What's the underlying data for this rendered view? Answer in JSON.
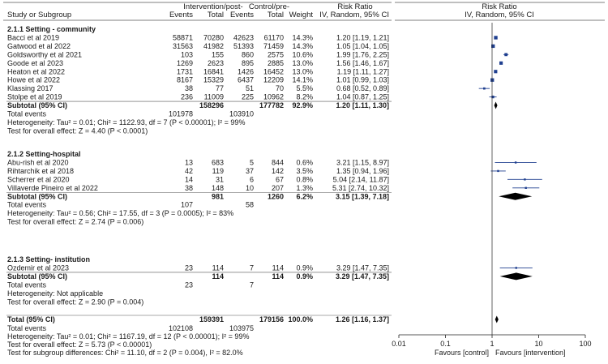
{
  "header": {
    "study_col": "Study or Subgroup",
    "group1": "Intervention/post-",
    "group2": "Control/pre-",
    "events": "Events",
    "total": "Total",
    "weight": "Weight",
    "rr_title": "Risk Ratio",
    "rr_sub": "IV, Random, 95% CI"
  },
  "subgroups": [
    {
      "title": "2.1.1 Setting - community",
      "studies": [
        {
          "name": "Bacci et al 2019",
          "e1": "58871",
          "t1": "70280",
          "e2": "42623",
          "t2": "61170",
          "weight": "14.3%",
          "ci_text": "1.20 [1.19, 1.21]",
          "rr": 1.2,
          "lo": 1.19,
          "hi": 1.21
        },
        {
          "name": "Gatwood et al 2022",
          "e1": "31563",
          "t1": "41982",
          "e2": "51393",
          "t2": "71459",
          "weight": "14.3%",
          "ci_text": "1.05 [1.04, 1.05]",
          "rr": 1.05,
          "lo": 1.04,
          "hi": 1.05
        },
        {
          "name": "Goldsworthy et al 2021",
          "e1": "103",
          "t1": "155",
          "e2": "860",
          "t2": "2575",
          "weight": "10.6%",
          "ci_text": "1.99 [1.76, 2.25]",
          "rr": 1.99,
          "lo": 1.76,
          "hi": 2.25
        },
        {
          "name": "Goode et al 2023",
          "e1": "1269",
          "t1": "2623",
          "e2": "895",
          "t2": "2885",
          "weight": "13.0%",
          "ci_text": "1.56 [1.46, 1.67]",
          "rr": 1.56,
          "lo": 1.46,
          "hi": 1.67
        },
        {
          "name": "Heaton et al 2022",
          "e1": "1731",
          "t1": "16841",
          "e2": "1426",
          "t2": "16452",
          "weight": "13.0%",
          "ci_text": "1.19 [1.11, 1.27]",
          "rr": 1.19,
          "lo": 1.11,
          "hi": 1.27
        },
        {
          "name": "Howe et al 2022",
          "e1": "8167",
          "t1": "15329",
          "e2": "6437",
          "t2": "12209",
          "weight": "14.1%",
          "ci_text": "1.01 [0.99, 1.03]",
          "rr": 1.01,
          "lo": 0.99,
          "hi": 1.03
        },
        {
          "name": "Klassing 2017",
          "e1": "38",
          "t1": "77",
          "e2": "51",
          "t2": "70",
          "weight": "5.5%",
          "ci_text": "0.68 [0.52, 0.89]",
          "rr": 0.68,
          "lo": 0.52,
          "hi": 0.89
        },
        {
          "name": "Stolpe et al 2019",
          "e1": "236",
          "t1": "11009",
          "e2": "225",
          "t2": "10962",
          "weight": "8.2%",
          "ci_text": "1.04 [0.87, 1.25]",
          "rr": 1.04,
          "lo": 0.87,
          "hi": 1.25
        }
      ],
      "subtotal": {
        "label": "Subtotal (95% CI)",
        "t1": "158296",
        "t2": "177782",
        "weight": "92.9%",
        "ci_text": "1.20 [1.11, 1.30]",
        "rr": 1.2,
        "lo": 1.11,
        "hi": 1.3
      },
      "total_events": {
        "label": "Total events",
        "e1": "101978",
        "e2": "103910"
      },
      "heterogeneity": "Heterogeneity: Tau² = 0.01; Chi² = 1122.93, df = 7 (P < 0.00001); I² = 99%",
      "overall_test": "Test for overall effect: Z = 4.40 (P < 0.0001)"
    },
    {
      "title": "2.1.2 Setting-hospital",
      "studies": [
        {
          "name": "Abu-rish et al 2020",
          "e1": "13",
          "t1": "683",
          "e2": "5",
          "t2": "844",
          "weight": "0.6%",
          "ci_text": "3.21 [1.15, 8.97]",
          "rr": 3.21,
          "lo": 1.15,
          "hi": 8.97
        },
        {
          "name": "Rihtarchik et al 2018",
          "e1": "42",
          "t1": "119",
          "e2": "37",
          "t2": "142",
          "weight": "3.5%",
          "ci_text": "1.35 [0.94, 1.96]",
          "rr": 1.35,
          "lo": 0.94,
          "hi": 1.96
        },
        {
          "name": "Scherrer et al 2020",
          "e1": "14",
          "t1": "31",
          "e2": "6",
          "t2": "67",
          "weight": "0.8%",
          "ci_text": "5.04 [2.14, 11.87]",
          "rr": 5.04,
          "lo": 2.14,
          "hi": 11.87
        },
        {
          "name": "Villaverde Pineiro et al 2022",
          "e1": "38",
          "t1": "148",
          "e2": "10",
          "t2": "207",
          "weight": "1.3%",
          "ci_text": "5.31 [2.74, 10.32]",
          "rr": 5.31,
          "lo": 2.74,
          "hi": 10.32
        }
      ],
      "subtotal": {
        "label": "Subtotal (95% CI)",
        "t1": "981",
        "t2": "1260",
        "weight": "6.2%",
        "ci_text": "3.15 [1.39, 7.18]",
        "rr": 3.15,
        "lo": 1.39,
        "hi": 7.18
      },
      "total_events": {
        "label": "Total events",
        "e1": "107",
        "e2": "58"
      },
      "heterogeneity": "Heterogeneity: Tau² = 0.56; Chi² = 17.55, df = 3 (P = 0.0005); I² = 83%",
      "overall_test": "Test for overall effect: Z = 2.74 (P = 0.006)"
    },
    {
      "title": "2.1.3 Setting- institution",
      "studies": [
        {
          "name": "Ozdemir et al 2023",
          "e1": "23",
          "t1": "114",
          "e2": "7",
          "t2": "114",
          "weight": "0.9%",
          "ci_text": "3.29 [1.47, 7.35]",
          "rr": 3.29,
          "lo": 1.47,
          "hi": 7.35
        }
      ],
      "subtotal": {
        "label": "Subtotal (95% CI)",
        "t1": "114",
        "t2": "114",
        "weight": "0.9%",
        "ci_text": "3.29 [1.47, 7.35]",
        "rr": 3.29,
        "lo": 1.47,
        "hi": 7.35
      },
      "total_events": {
        "label": "Total events",
        "e1": "23",
        "e2": "7"
      },
      "heterogeneity": "Heterogeneity: Not applicable",
      "overall_test": "Test for overall effect: Z = 2.90 (P = 0.004)"
    }
  ],
  "overall": {
    "label": "Total (95% CI)",
    "t1": "159391",
    "t2": "179156",
    "weight": "100.0%",
    "ci_text": "1.26 [1.16, 1.37]",
    "rr": 1.26,
    "lo": 1.16,
    "hi": 1.37,
    "total_events": {
      "label": "Total events",
      "e1": "102108",
      "e2": "103975"
    },
    "heterogeneity": "Heterogeneity: Tau² = 0.01; Chi² = 1167.19, df = 12 (P < 0.00001); I² = 99%",
    "overall_test": "Test for overall effect: Z = 5.73 (P < 0.00001)",
    "subgroup_test": "Test for subgroup differences: Chi² = 11.10, df = 2 (P = 0.004), I² = 82.0%"
  },
  "axis": {
    "scale": "log",
    "xlim": [
      0.01,
      100
    ],
    "ticks": [
      0.01,
      0.1,
      1,
      10,
      100
    ],
    "tick_labels": [
      "0.01",
      "0.1",
      "1",
      "10",
      "100"
    ],
    "favours_left": "Favours [control]",
    "favours_right": "Favours [intervention]"
  },
  "colors": {
    "study_marker": "#1f3f8f",
    "diamond": "#000000",
    "ci_line": "#1f3f8f",
    "rule": "#555555"
  },
  "chart_data": {
    "type": "forest",
    "xscale": "log",
    "xlim": [
      0.01,
      100
    ],
    "xticks": [
      "0.01",
      "0.1",
      "1",
      "10",
      "100"
    ],
    "measure": "Risk Ratio",
    "method": "IV, Random, 95% CI",
    "favours": [
      "Favours [control]",
      "Favours [intervention]"
    ],
    "subgroups": [
      "2.1.1 Setting - community",
      "2.1.2 Setting-hospital",
      "2.1.3 Setting- institution"
    ],
    "overall": {
      "rr": 1.26,
      "lo": 1.16,
      "hi": 1.37
    }
  }
}
